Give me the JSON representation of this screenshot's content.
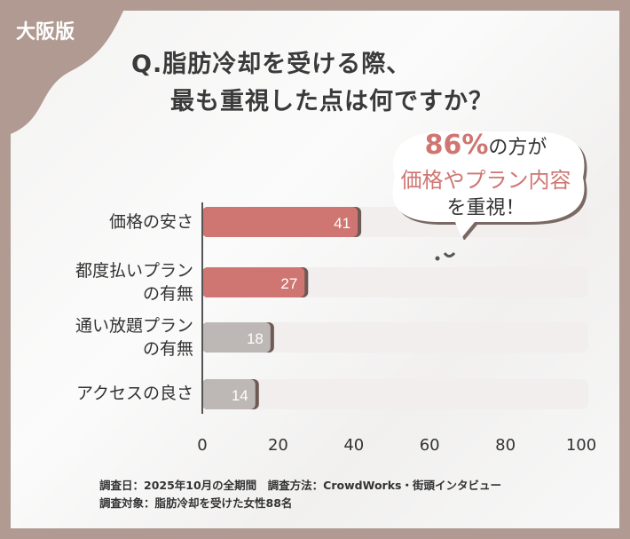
{
  "badge": "大阪版",
  "title": {
    "line1": "Q.脂肪冷却を受ける際、",
    "line2": "最も重視した点は何ですか？"
  },
  "callout": {
    "percent": "86%",
    "line1_rest": "の方が",
    "line2": "価格やプラン内容",
    "line3": "を重視！"
  },
  "colors": {
    "frame": "#b09a92",
    "highlight": "#cf7672",
    "neutral": "#bdb8b5",
    "track": "#f1eeed"
  },
  "chart_data": {
    "type": "bar",
    "orientation": "horizontal",
    "categories": [
      "価格の安さ",
      "都度払いプランの有無",
      "通い放題プランの有無",
      "アクセスの良さ"
    ],
    "category_lines": [
      [
        "価格の安さ"
      ],
      [
        "都度払いプラン",
        "の有無"
      ],
      [
        "通い放題プラン",
        "の有無"
      ],
      [
        "アクセスの良さ"
      ]
    ],
    "values": [
      41,
      27,
      18,
      14
    ],
    "highlighted": [
      true,
      true,
      false,
      false
    ],
    "xlim": [
      0,
      100
    ],
    "xticks": [
      "0",
      "20",
      "40",
      "60",
      "80",
      "100"
    ],
    "grid": false
  },
  "footer": {
    "line1": "調査日：2025年10月の全期間　調査方法：CrowdWorks・街頭インタビュー",
    "line2": "調査対象：脂肪冷却を受けた女性88名"
  }
}
